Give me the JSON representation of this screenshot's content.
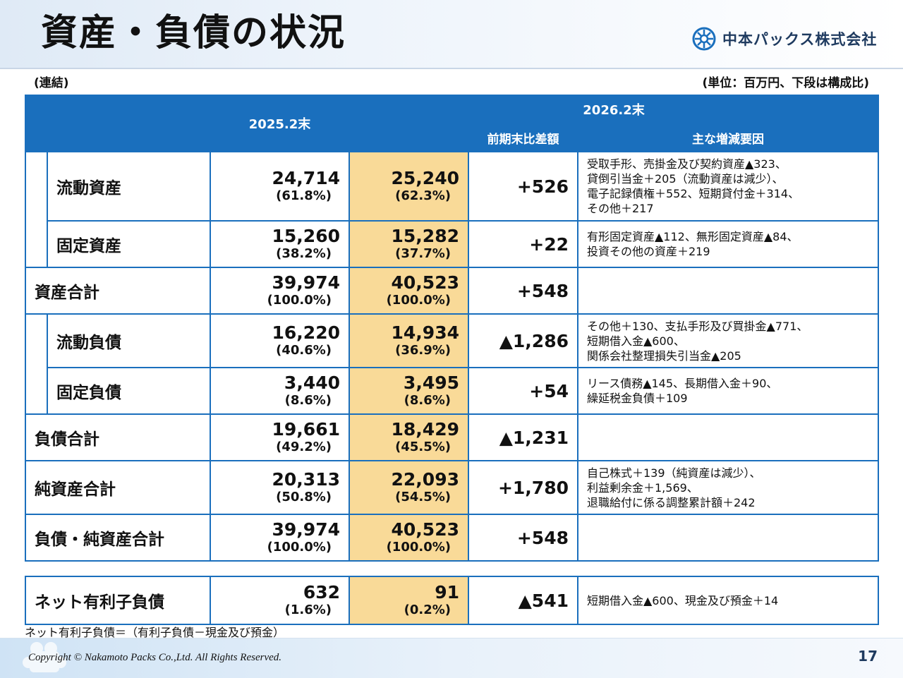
{
  "header": {
    "title": "資産・負債の状況",
    "company_name": "中本パックス株式会社"
  },
  "labels": {
    "scope": "(連結)",
    "unit": "(単位：百万円、下段は構成比)"
  },
  "table": {
    "col_prev": "2025.2末",
    "col_curr": "2026.2末",
    "col_diff": "前期末比差額",
    "col_notes": "主な増減要因",
    "rows": [
      {
        "item": "流動資産",
        "indent": true,
        "prev": "24,714",
        "prev_pct": "(61.8%)",
        "curr": "25,240",
        "curr_pct": "(62.3%)",
        "diff": "+526",
        "notes": [
          "受取手形、売掛金及び契約資産▲323、",
          "貸倒引当金＋205（流動資産は減少）、",
          "電子記録債権＋552、短期貸付金＋314、",
          "その他＋217"
        ]
      },
      {
        "item": "固定資産",
        "indent": true,
        "prev": "15,260",
        "prev_pct": "(38.2%)",
        "curr": "15,282",
        "curr_pct": "(37.7%)",
        "diff": "+22",
        "notes": [
          "有形固定資産▲112、無形固定資産▲84、",
          "投資その他の資産＋219"
        ]
      },
      {
        "item": "資産合計",
        "indent": false,
        "prev": "39,974",
        "prev_pct": "(100.0%)",
        "curr": "40,523",
        "curr_pct": "(100.0%)",
        "diff": "+548",
        "notes": []
      },
      {
        "item": "流動負債",
        "indent": true,
        "prev": "16,220",
        "prev_pct": "(40.6%)",
        "curr": "14,934",
        "curr_pct": "(36.9%)",
        "diff": "▲1,286",
        "notes": [
          "その他＋130、支払手形及び買掛金▲771、",
          "短期借入金▲600、",
          "関係会社整理損失引当金▲205"
        ]
      },
      {
        "item": "固定負債",
        "indent": true,
        "prev": "3,440",
        "prev_pct": "(8.6%)",
        "curr": "3,495",
        "curr_pct": "(8.6%)",
        "diff": "+54",
        "notes": [
          "リース債務▲145、長期借入金＋90、",
          "繰延税金負債＋109"
        ]
      },
      {
        "item": "負債合計",
        "indent": false,
        "prev": "19,661",
        "prev_pct": "(49.2%)",
        "curr": "18,429",
        "curr_pct": "(45.5%)",
        "diff": "▲1,231",
        "notes": []
      },
      {
        "item": "純資産合計",
        "indent": false,
        "prev": "20,313",
        "prev_pct": "(50.8%)",
        "curr": "22,093",
        "curr_pct": "(54.5%)",
        "diff": "+1,780",
        "notes": [
          "自己株式＋139（純資産は減少）、",
          "利益剰余金＋1,569、",
          "退職給付に係る調整累計額＋242"
        ]
      },
      {
        "item": "負債・純資産合計",
        "indent": false,
        "prev": "39,974",
        "prev_pct": "(100.0%)",
        "curr": "40,523",
        "curr_pct": "(100.0%)",
        "diff": "+548",
        "notes": []
      }
    ]
  },
  "net_debt": {
    "item": "ネット有利子負債",
    "prev": "632",
    "prev_pct": "(1.6%)",
    "curr": "91",
    "curr_pct": "(0.2%)",
    "diff": "▲541",
    "notes": [
      "短期借入金▲600、現金及び預金＋14"
    ]
  },
  "footnote": "ネット有利子負債＝（有利子負債－現金及び預金）",
  "footer": {
    "copyright": "Copyright © Nakamoto Packs Co.,Ltd. All Rights Reserved.",
    "page_number": "17"
  },
  "colors": {
    "header_blue": "#1a6fbd",
    "highlight": "#f9da98"
  }
}
